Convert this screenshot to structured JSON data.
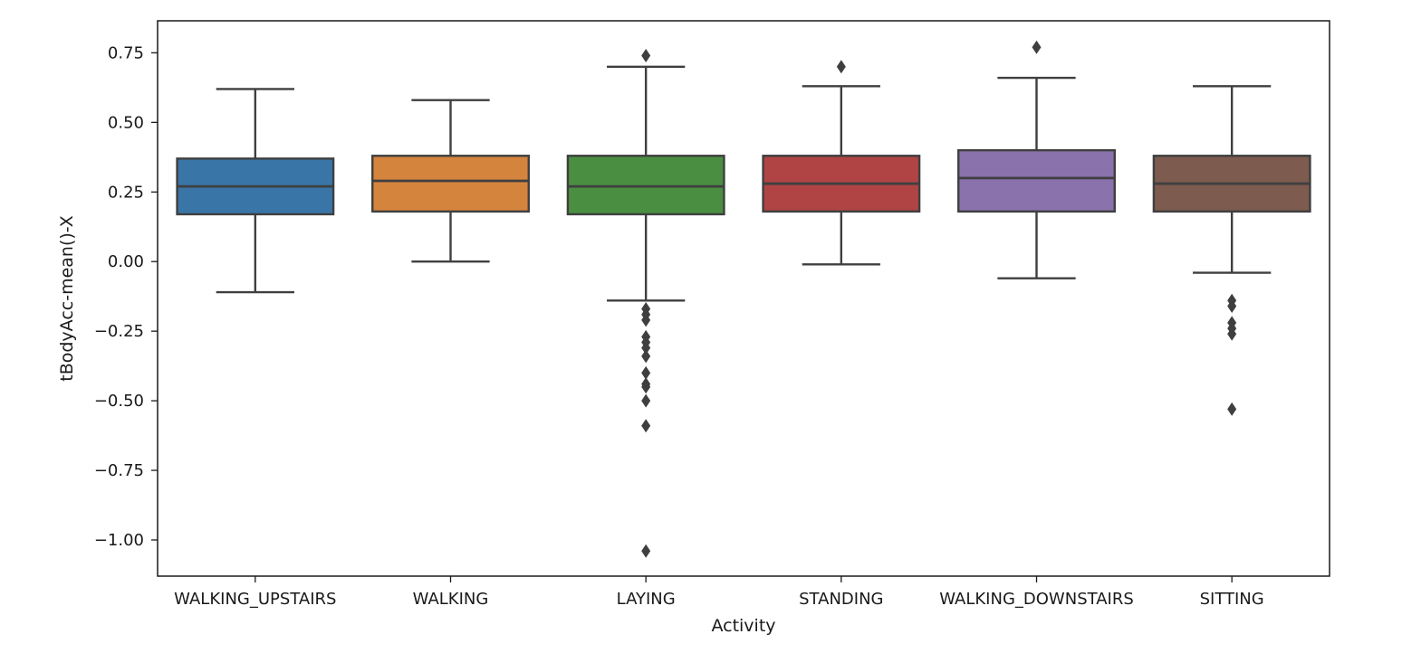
{
  "chart_data": {
    "type": "box",
    "xlabel": "Activity",
    "ylabel": "tBodyAcc-mean()-X",
    "ylim": [
      -1.13,
      0.865
    ],
    "yticks": [
      0.75,
      0.5,
      0.25,
      0.0,
      -0.25,
      -0.5,
      -0.75,
      -1.0
    ],
    "ytick_labels": [
      "0.75",
      "0.50",
      "0.25",
      "0.00",
      "−0.25",
      "−0.50",
      "−0.75",
      "−1.00"
    ],
    "grid": false,
    "legend": "none",
    "categories": [
      "WALKING_UPSTAIRS",
      "WALKING",
      "LAYING",
      "STANDING",
      "WALKING_DOWNSTAIRS",
      "SITTING"
    ],
    "boxes": [
      {
        "category": "WALKING_UPSTAIRS",
        "color": "#3a75a7",
        "whisker_low": -0.11,
        "q1": 0.17,
        "median": 0.27,
        "q3": 0.37,
        "whisker_high": 0.62,
        "outliers": []
      },
      {
        "category": "WALKING",
        "color": "#d5843e",
        "whisker_low": 0.0,
        "q1": 0.18,
        "median": 0.29,
        "q3": 0.38,
        "whisker_high": 0.58,
        "outliers": []
      },
      {
        "category": "LAYING",
        "color": "#4a8e42",
        "whisker_low": -0.14,
        "q1": 0.17,
        "median": 0.27,
        "q3": 0.38,
        "whisker_high": 0.7,
        "outliers": [
          0.74,
          -0.17,
          -0.19,
          -0.21,
          -0.27,
          -0.29,
          -0.31,
          -0.34,
          -0.4,
          -0.44,
          -0.45,
          -0.5,
          -0.59,
          -1.04
        ]
      },
      {
        "category": "STANDING",
        "color": "#b04444",
        "whisker_low": -0.01,
        "q1": 0.18,
        "median": 0.28,
        "q3": 0.38,
        "whisker_high": 0.63,
        "outliers": [
          0.7
        ]
      },
      {
        "category": "WALKING_DOWNSTAIRS",
        "color": "#8a72ad",
        "whisker_low": -0.06,
        "q1": 0.18,
        "median": 0.3,
        "q3": 0.4,
        "whisker_high": 0.66,
        "outliers": [
          0.77
        ]
      },
      {
        "category": "SITTING",
        "color": "#7d5b4f",
        "whisker_low": -0.04,
        "q1": 0.18,
        "median": 0.28,
        "q3": 0.38,
        "whisker_high": 0.63,
        "outliers": [
          -0.14,
          -0.16,
          -0.22,
          -0.24,
          -0.26,
          -0.53
        ]
      }
    ]
  }
}
